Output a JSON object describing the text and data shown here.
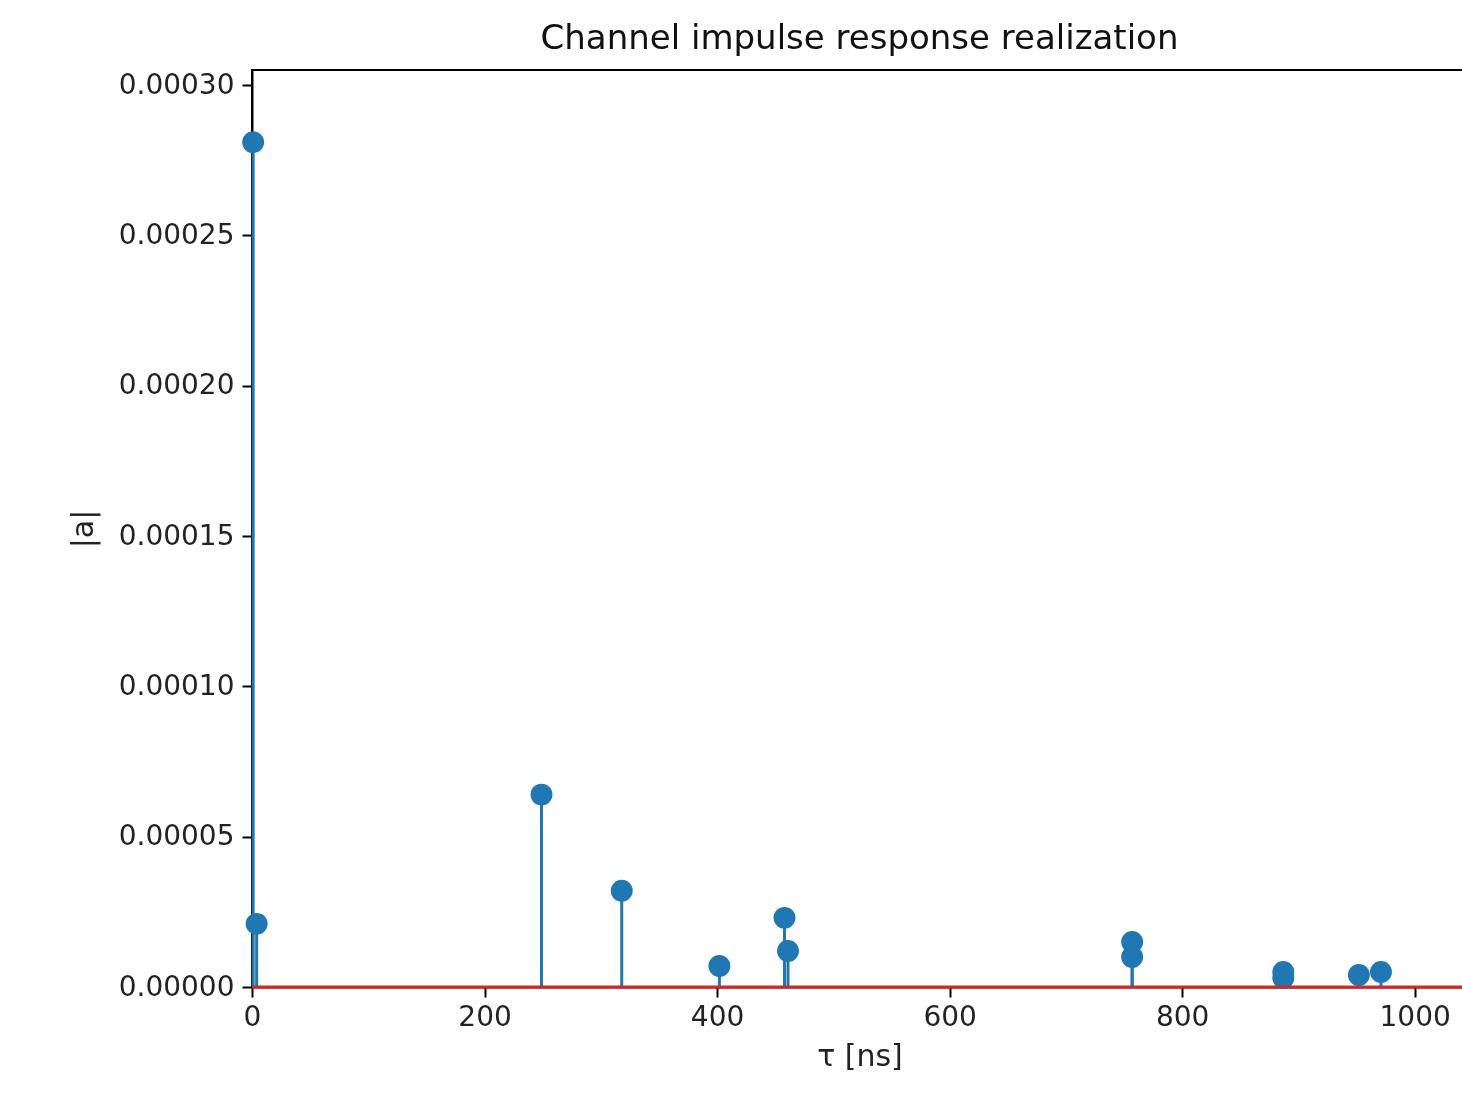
{
  "chart_data": {
    "type": "lollipop",
    "title": "Channel impulse response realization",
    "xlabel": "τ [ns]",
    "ylabel": "|a|",
    "x": [
      1,
      4,
      249,
      318,
      402,
      458,
      461,
      757,
      757,
      887,
      887,
      952,
      971
    ],
    "series": [
      {
        "color": "#1f77b4",
        "values": [
          0.000281,
          2.1e-05,
          6.4e-05,
          3.2e-05,
          7e-06,
          2.3e-05,
          1.2e-05,
          1.5e-05,
          1e-05,
          5e-06,
          3e-06,
          4e-06,
          5e-06
        ]
      }
    ],
    "marker": "circle",
    "xlim": [
      0,
      1045
    ],
    "ylim": [
      0,
      0.000305
    ],
    "xticks": [
      0,
      200,
      400,
      600,
      800,
      1000
    ],
    "yticks": [
      {
        "value": 0,
        "label": "0.00000"
      },
      {
        "value": 5e-05,
        "label": "0.00005"
      },
      {
        "value": 0.0001,
        "label": "0.00010"
      },
      {
        "value": 0.00015,
        "label": "0.00015"
      },
      {
        "value": 0.0002,
        "label": "0.00020"
      },
      {
        "value": 0.00025,
        "label": "0.00025"
      },
      {
        "value": 0.0003,
        "label": "0.00030"
      }
    ],
    "ref_lines": [
      {
        "axis": "y",
        "value": 0,
        "color": "#d62728"
      }
    ],
    "grid": false
  }
}
